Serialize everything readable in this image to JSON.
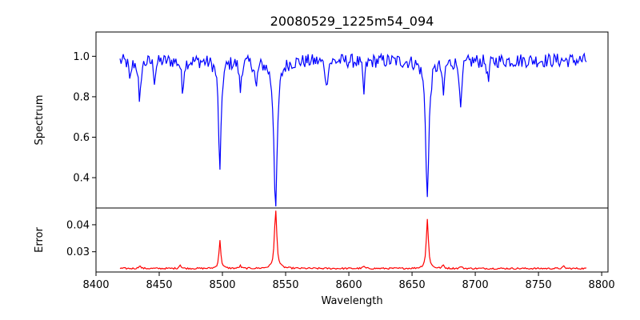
{
  "colors": {
    "spectrum": "#0000ff",
    "error": "#ff0000",
    "axis": "#000000",
    "background": "#ffffff"
  },
  "chart_data": {
    "type": "line",
    "title": "20080529_1225m54_094",
    "xlabel": "Wavelength",
    "xlim": [
      8400,
      8805
    ],
    "xticks": [
      8400,
      8450,
      8500,
      8550,
      8600,
      8650,
      8700,
      8750,
      8800
    ],
    "x_range": [
      8419,
      8788
    ],
    "grid": false,
    "panels": [
      {
        "name": "spectrum",
        "ylabel": "Spectrum",
        "ylim": [
          0.25,
          1.12
        ],
        "yticks": [
          0.4,
          0.6,
          0.8,
          1.0
        ],
        "ytick_labels": [
          "0.4",
          "0.6",
          "0.8",
          "1.0"
        ],
        "continuum": 0.98,
        "noise": 0.035,
        "features": [
          {
            "center": 8434.5,
            "depth": 0.24,
            "width": 0.9
          },
          {
            "center": 8426.9,
            "depth": 0.12,
            "width": 0.8
          },
          {
            "center": 8446.4,
            "depth": 0.1,
            "width": 0.8
          },
          {
            "center": 8468.4,
            "depth": 0.16,
            "width": 0.9
          },
          {
            "center": 8498.0,
            "depth": 0.56,
            "width": 1.2
          },
          {
            "center": 8514.1,
            "depth": 0.15,
            "width": 0.9
          },
          {
            "center": 8526.7,
            "depth": 0.14,
            "width": 1.0
          },
          {
            "center": 8542.1,
            "depth": 0.73,
            "width": 1.6
          },
          {
            "center": 8582.3,
            "depth": 0.14,
            "width": 0.9
          },
          {
            "center": 8611.8,
            "depth": 0.17,
            "width": 0.9
          },
          {
            "center": 8662.1,
            "depth": 0.68,
            "width": 1.5
          },
          {
            "center": 8674.7,
            "depth": 0.18,
            "width": 0.9
          },
          {
            "center": 8688.6,
            "depth": 0.27,
            "width": 0.9
          },
          {
            "center": 8710.2,
            "depth": 0.12,
            "width": 0.8
          }
        ]
      },
      {
        "name": "error",
        "ylabel": "Error",
        "ylim": [
          0.0225,
          0.0462
        ],
        "yticks": [
          0.03,
          0.04
        ],
        "ytick_labels": [
          "0.03",
          "0.04"
        ],
        "continuum": 0.0238,
        "noise": 0.0003,
        "features": [
          {
            "center": 8498.0,
            "depth": 0.0103,
            "width": 0.9
          },
          {
            "center": 8542.1,
            "depth": 0.0218,
            "width": 1.1
          },
          {
            "center": 8662.1,
            "depth": 0.0182,
            "width": 1.0
          },
          {
            "center": 8466.5,
            "depth": 0.0015,
            "width": 0.8
          },
          {
            "center": 8434.5,
            "depth": 0.0012,
            "width": 0.8
          },
          {
            "center": 8514.1,
            "depth": 0.001,
            "width": 0.8
          },
          {
            "center": 8611.8,
            "depth": 0.0008,
            "width": 0.8
          },
          {
            "center": 8674.7,
            "depth": 0.0012,
            "width": 0.8
          },
          {
            "center": 8688.6,
            "depth": 0.0008,
            "width": 0.8
          },
          {
            "center": 8770.0,
            "depth": 0.0008,
            "width": 0.8
          }
        ]
      }
    ]
  }
}
